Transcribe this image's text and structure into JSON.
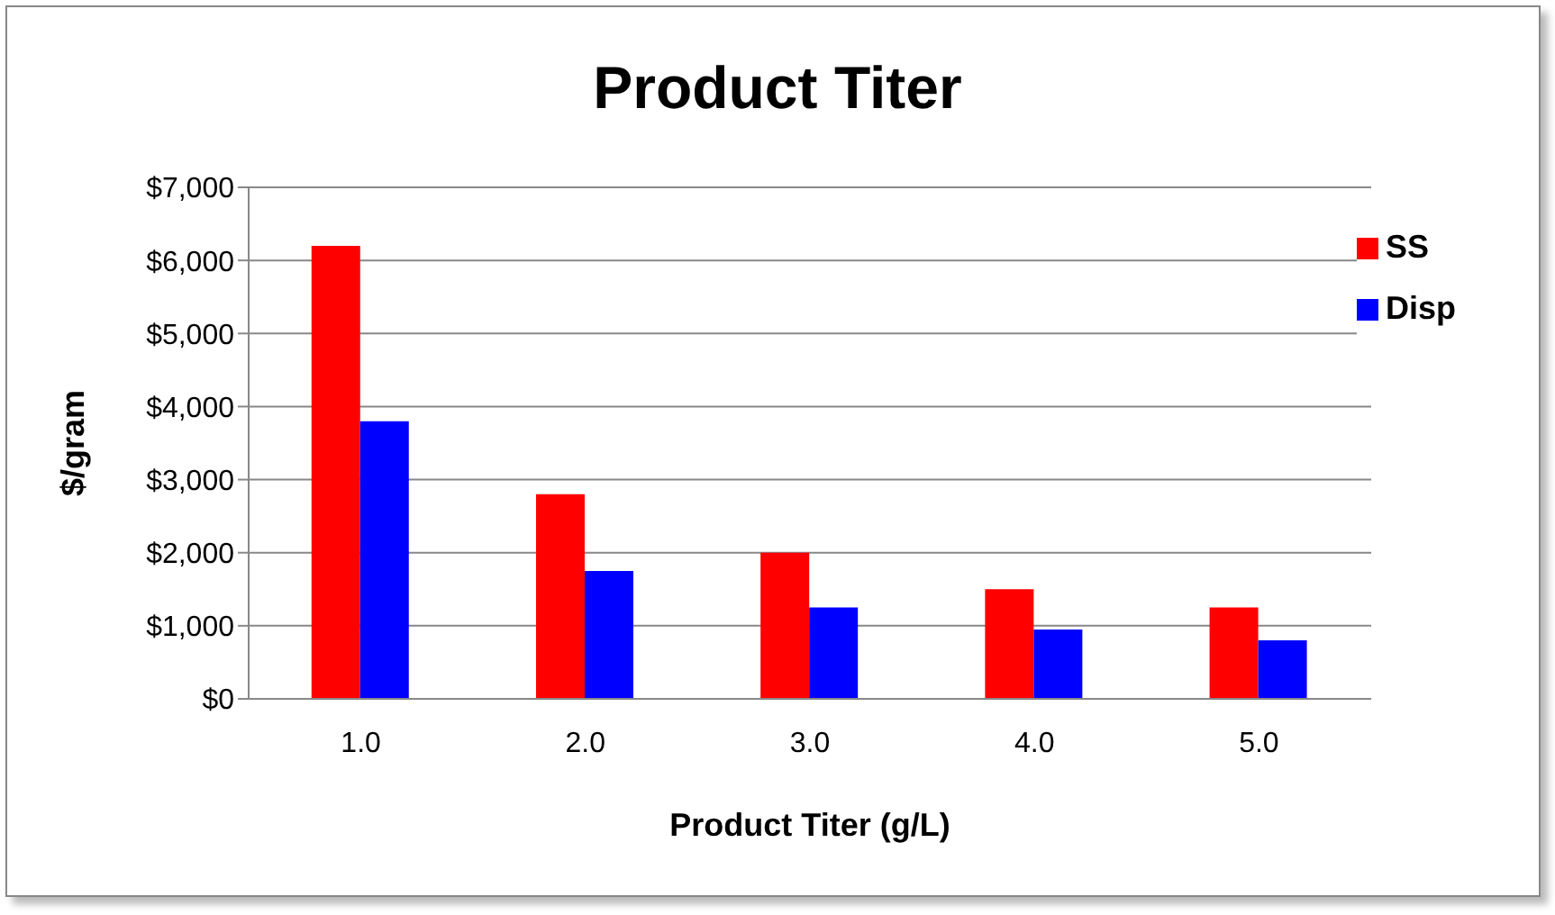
{
  "chart_data": {
    "type": "bar",
    "title": "Product Titer",
    "xlabel": "Product Titer (g/L)",
    "ylabel": "$/gram",
    "categories": [
      "1.0",
      "2.0",
      "3.0",
      "4.0",
      "5.0"
    ],
    "series": [
      {
        "name": "SS",
        "color": "#ff0000",
        "values": [
          6200,
          2800,
          2000,
          1500,
          1250
        ]
      },
      {
        "name": "Disp",
        "color": "#0000ff",
        "values": [
          3800,
          1750,
          1250,
          950,
          800
        ]
      }
    ],
    "ylim": [
      0,
      7000
    ],
    "yticks": [
      {
        "value": 0,
        "label": "$0"
      },
      {
        "value": 1000,
        "label": "$1,000"
      },
      {
        "value": 2000,
        "label": "$2,000"
      },
      {
        "value": 3000,
        "label": "$3,000"
      },
      {
        "value": 4000,
        "label": "$4,000"
      },
      {
        "value": 5000,
        "label": "$5,000"
      },
      {
        "value": 6000,
        "label": "$6,000"
      },
      {
        "value": 7000,
        "label": "$7,000"
      }
    ],
    "grid": "y",
    "legend": "top right"
  }
}
